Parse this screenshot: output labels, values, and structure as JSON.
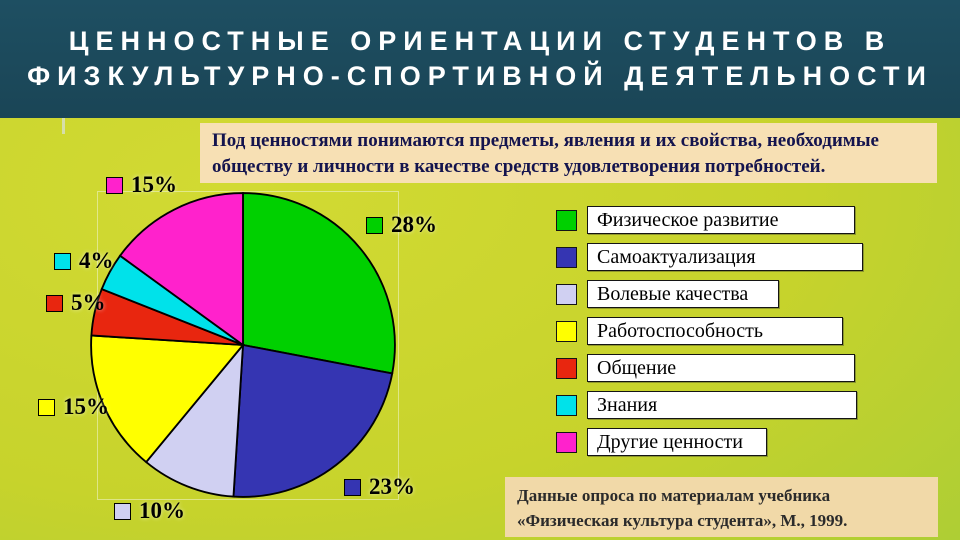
{
  "slide": {
    "title_line1": "ЦЕННОСТНЫЕ ОРИЕНТАЦИИ СТУДЕНТОВ В",
    "title_line2": "ФИЗКУЛЬТУРНО-СПОРТИВНОЙ ДЕЯТЕЛЬНОСТИ",
    "definition_text": "Под ценностями понимаются предметы, явления и их свойства, необходимые обществу и личности в качестве средств удовлетворения потребностей.",
    "source_text": "Данные опроса по материалам учебника «Физическая культура студента», М., 1999."
  },
  "colors": {
    "header_bg": "#1b4656",
    "slide_bg_top": "#d2da33",
    "slide_bg_bottom": "#9bca3b",
    "definition_bg": "#f7e0b4",
    "source_bg": "#f1d9a8",
    "title_text": "#ffffff"
  },
  "chart_data": {
    "type": "pie",
    "title": "",
    "start_angle_deg": -90,
    "direction": "clockwise",
    "legend_position": "right",
    "slices": [
      {
        "label": "Физическое развитие",
        "value": 28,
        "pct_label": "28%",
        "color": "#00d000"
      },
      {
        "label": "Самоактуализация",
        "value": 23,
        "pct_label": "23%",
        "color": "#3535b2"
      },
      {
        "label": "Волевые качества",
        "value": 10,
        "pct_label": "10%",
        "color": "#d0d0f2"
      },
      {
        "label": "Работоспособность",
        "value": 15,
        "pct_label": "15%",
        "color": "#ffff00"
      },
      {
        "label": "Общение",
        "value": 5,
        "pct_label": "5%",
        "color": "#e8260f"
      },
      {
        "label": "Знания",
        "value": 4,
        "pct_label": "4%",
        "color": "#00e2ea"
      },
      {
        "label": "Другие ценности",
        "value": 15,
        "pct_label": "15%",
        "color": "#ff22cc"
      }
    ]
  }
}
